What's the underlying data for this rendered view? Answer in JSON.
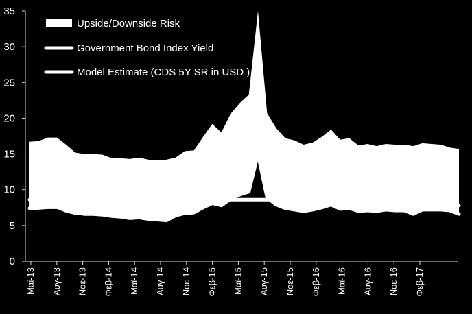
{
  "chart_data": {
    "type": "area",
    "ylim": [
      0,
      35
    ],
    "yticks": [
      0,
      5,
      10,
      15,
      20,
      25,
      30,
      35
    ],
    "grid": false,
    "legend_position": "top-left",
    "background": "#000000",
    "series_color": "#ffffff",
    "x_labels": [
      "Μαϊ-13",
      "Αυγ-13",
      "Νοε-13",
      "Φεβ-14",
      "Μαϊ-14",
      "Αυγ-14",
      "Νοε-14",
      "Φεβ-15",
      "Μαϊ-15",
      "Αυγ-15",
      "Νοε-15",
      "Φεβ-16",
      "Μαϊ-16",
      "Αυγ-16",
      "Νοε-16",
      "Φεβ-17"
    ],
    "series": [
      {
        "name": "Upside/Downside Risk",
        "kind": "band",
        "upper": [
          16.7,
          16.8,
          17.3,
          17.3,
          16.3,
          15.2,
          15.0,
          15.0,
          14.9,
          14.4,
          14.4,
          14.3,
          14.5,
          14.2,
          14.1,
          14.2,
          14.5,
          15.4,
          15.5,
          17.4,
          19.2,
          18.0,
          20.6,
          22.1,
          23.3,
          35.0,
          20.7,
          18.6,
          17.2,
          16.9,
          16.3,
          16.6,
          17.4,
          18.4,
          17.0,
          17.2,
          16.2,
          16.4,
          16.1,
          16.4,
          16.3,
          16.3,
          16.1,
          16.5,
          16.4,
          16.3,
          15.9,
          15.7
        ],
        "lower": [
          7.1,
          7.2,
          7.3,
          7.3,
          6.8,
          6.5,
          6.4,
          6.4,
          6.4,
          6.1,
          6.0,
          5.8,
          5.9,
          5.7,
          5.6,
          5.5,
          6.2,
          6.5,
          6.6,
          7.3,
          7.9,
          7.6,
          8.5,
          9.1,
          9.5,
          14.8,
          8.7,
          7.7,
          7.2,
          7.0,
          6.8,
          7.0,
          7.3,
          7.7,
          7.1,
          7.2,
          6.8,
          6.9,
          6.8,
          7.0,
          6.9,
          6.9,
          6.8,
          7.0,
          7.0,
          7.0,
          6.9,
          6.8
        ]
      },
      {
        "name": "Government Bond Index Yield",
        "kind": "line",
        "values": [
          7.4,
          7.5,
          7.6,
          7.6,
          7.1,
          6.8,
          6.6,
          6.6,
          6.5,
          6.3,
          6.2,
          6.0,
          6.1,
          5.9,
          5.8,
          5.7,
          6.4,
          6.7,
          6.8,
          7.5,
          8.1,
          7.8,
          8.7,
          9.3,
          9.7,
          15.0,
          8.9,
          7.9,
          7.4,
          7.2,
          7.0,
          7.2,
          7.5,
          7.9,
          7.3,
          7.4,
          7.0,
          7.1,
          7.0,
          7.2,
          7.1,
          7.1,
          6.6,
          7.2,
          7.2,
          7.2,
          7.1,
          6.6
        ]
      },
      {
        "name": "Model Estimate (CDS 5Y SR in USD )",
        "kind": "line",
        "values": [
          8.6,
          8.6,
          8.6,
          8.6,
          8.6,
          8.6,
          8.6,
          8.6,
          8.6,
          8.6,
          8.6,
          8.6,
          8.6,
          8.6,
          8.6,
          8.6,
          8.6,
          8.6,
          8.6,
          8.6,
          8.6,
          8.6,
          8.6,
          8.6,
          8.6,
          8.6,
          8.6,
          8.6,
          8.6,
          8.6,
          8.6,
          8.6,
          8.6,
          8.6,
          8.6,
          8.6,
          8.6,
          8.6,
          8.6,
          8.6,
          8.6,
          8.6,
          8.6,
          8.6,
          8.6,
          8.6,
          8.6,
          7.8
        ]
      }
    ]
  }
}
